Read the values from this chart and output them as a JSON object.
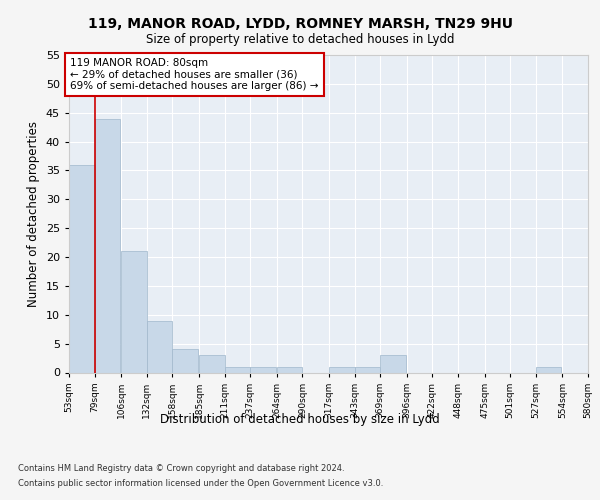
{
  "title1": "119, MANOR ROAD, LYDD, ROMNEY MARSH, TN29 9HU",
  "title2": "Size of property relative to detached houses in Lydd",
  "xlabel": "Distribution of detached houses by size in Lydd",
  "ylabel": "Number of detached properties",
  "footnote1": "Contains HM Land Registry data © Crown copyright and database right 2024.",
  "footnote2": "Contains public sector information licensed under the Open Government Licence v3.0.",
  "annotation_line1": "119 MANOR ROAD: 80sqm",
  "annotation_line2": "← 29% of detached houses are smaller (36)",
  "annotation_line3": "69% of semi-detached houses are larger (86) →",
  "bin_edges": [
    53,
    79,
    106,
    132,
    158,
    185,
    211,
    237,
    264,
    290,
    317,
    343,
    369,
    396,
    422,
    448,
    475,
    501,
    527,
    554,
    580
  ],
  "bin_labels": [
    "53sqm",
    "79sqm",
    "106sqm",
    "132sqm",
    "158sqm",
    "185sqm",
    "211sqm",
    "237sqm",
    "264sqm",
    "290sqm",
    "317sqm",
    "343sqm",
    "369sqm",
    "396sqm",
    "422sqm",
    "448sqm",
    "475sqm",
    "501sqm",
    "527sqm",
    "554sqm",
    "580sqm"
  ],
  "bar_heights": [
    36,
    44,
    21,
    9,
    4,
    3,
    1,
    1,
    1,
    0,
    1,
    1,
    3,
    0,
    0,
    0,
    0,
    0,
    1,
    0,
    0
  ],
  "bar_color": "#c8d8e8",
  "bar_edge_color": "#a0b8cc",
  "vline_color": "#cc0000",
  "vline_x": 79,
  "background_color": "#e8eef5",
  "grid_color": "#ffffff",
  "fig_background": "#f5f5f5",
  "ylim": [
    0,
    55
  ],
  "yticks": [
    0,
    5,
    10,
    15,
    20,
    25,
    30,
    35,
    40,
    45,
    50,
    55
  ]
}
